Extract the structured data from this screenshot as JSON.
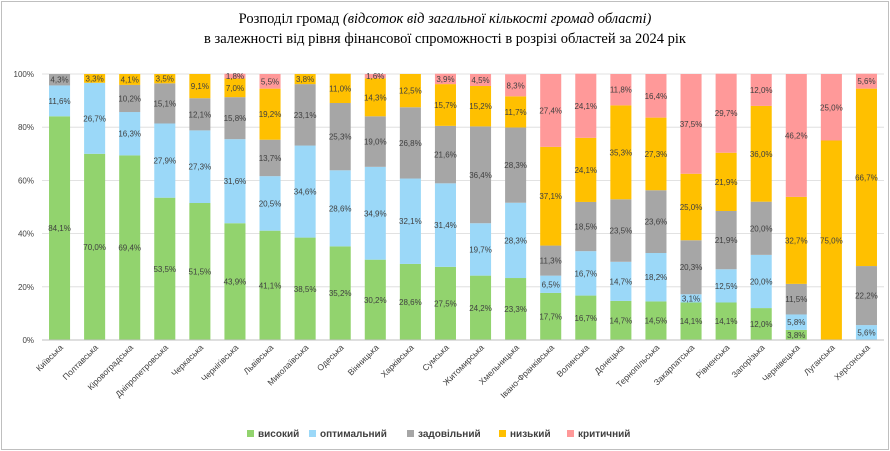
{
  "chart_data": {
    "type": "bar",
    "stacked": true,
    "title_main": "Розподіл громад",
    "title_italic": "(відсоток від загальної кількості громад області)",
    "title_line2": "в залежності від рівня фінансової спроможності  в розрізі областей за 2024 рік",
    "ylim": [
      0,
      100
    ],
    "yticks": [
      "0%",
      "20%",
      "40%",
      "60%",
      "80%",
      "100%"
    ],
    "grid": true,
    "legend_position": "bottom",
    "categories": [
      "Київська",
      "Полтавська",
      "Кіровоградська",
      "Дніпропетровська",
      "Черкаська",
      "Чернігівська",
      "Львівська",
      "Миколаївська",
      "Одеська",
      "Вінницька",
      "Харківська",
      "Сумська",
      "Житомирська",
      "Хмельницька",
      "Івано-Франківська",
      "Волинська",
      "Донецька",
      "Тернопільська",
      "Закарпатська",
      "Рівненська",
      "Запорізька",
      "Чернівецька",
      "Луганська",
      "Херсонська"
    ],
    "series": [
      {
        "name": "високий",
        "color": "#92d36e",
        "values": [
          84.1,
          70.0,
          69.4,
          53.5,
          51.5,
          43.9,
          41.1,
          38.5,
          35.2,
          30.2,
          28.6,
          27.5,
          24.2,
          23.3,
          17.7,
          16.7,
          14.7,
          14.5,
          14.1,
          14.1,
          12.0,
          3.8,
          0,
          0
        ],
        "labels": [
          "84,1%",
          "70,0%",
          "69,4%",
          "53,5%",
          "51,5%",
          "43,9%",
          "41,1%",
          "38,5%",
          "35,2%",
          "30,2%",
          "28,6%",
          "27,5%",
          "24,2%",
          "23,3%",
          "17,7%",
          "16,7%",
          "14,7%",
          "14,5%",
          "14,1%",
          "14,1%",
          "12,0%",
          "3,8%",
          "",
          ""
        ]
      },
      {
        "name": "оптимальний",
        "color": "#9bd8f8",
        "values": [
          11.6,
          26.7,
          16.3,
          27.9,
          27.3,
          31.6,
          20.5,
          34.6,
          28.6,
          34.9,
          32.1,
          31.4,
          19.7,
          28.3,
          6.5,
          16.7,
          14.7,
          18.2,
          3.1,
          12.5,
          20.0,
          5.8,
          0,
          5.6
        ],
        "labels": [
          "11,6%",
          "26,7%",
          "16,3%",
          "27,9%",
          "27,3%",
          "31,6%",
          "20,5%",
          "34,6%",
          "28,6%",
          "34,9%",
          "32,1%",
          "31,4%",
          "19,7%",
          "28,3%",
          "6,5%",
          "16,7%",
          "14,7%",
          "18,2%",
          "3,1%",
          "12,5%",
          "20,0%",
          "5,8%",
          "",
          "5,6%"
        ]
      },
      {
        "name": "задовільний",
        "color": "#a6a6a6",
        "values": [
          4.3,
          0,
          10.2,
          15.1,
          12.1,
          15.8,
          13.7,
          23.1,
          25.3,
          19.0,
          26.8,
          21.6,
          36.4,
          28.3,
          11.3,
          18.5,
          23.5,
          23.6,
          20.3,
          21.9,
          20.0,
          11.5,
          0,
          22.2
        ],
        "labels": [
          "4,3%",
          "",
          "10,2%",
          "15,1%",
          "12,1%",
          "15,8%",
          "13,7%",
          "23,1%",
          "25,3%",
          "19,0%",
          "26,8%",
          "21,6%",
          "36,4%",
          "28,3%",
          "11,3%",
          "18,5%",
          "23,5%",
          "23,6%",
          "20,3%",
          "21,9%",
          "20,0%",
          "11,5%",
          "",
          "22,2%"
        ]
      },
      {
        "name": "низький",
        "color": "#ffc000",
        "values": [
          0,
          3.3,
          4.1,
          3.5,
          9.1,
          7.0,
          19.2,
          3.8,
          11.0,
          14.3,
          12.5,
          15.7,
          15.2,
          11.7,
          37.1,
          24.1,
          35.3,
          27.3,
          25.0,
          21.9,
          36.0,
          32.7,
          75.0,
          66.7
        ],
        "labels": [
          "",
          "3,3%",
          "4,1%",
          "3,5%",
          "9,1%",
          "7,0%",
          "19,2%",
          "3,8%",
          "11,0%",
          "14,3%",
          "12,5%",
          "15,7%",
          "15,2%",
          "11,7%",
          "37,1%",
          "24,1%",
          "35,3%",
          "27,3%",
          "25,0%",
          "21,9%",
          "36,0%",
          "32,7%",
          "75,0%",
          "66,7%"
        ]
      },
      {
        "name": "критичний",
        "color": "#ff9999",
        "values": [
          0,
          0,
          0,
          0,
          0,
          1.8,
          5.5,
          0,
          0,
          1.6,
          0,
          3.9,
          4.5,
          8.3,
          27.4,
          24.1,
          11.8,
          16.4,
          37.5,
          29.7,
          12.0,
          46.2,
          25.0,
          5.6
        ],
        "labels": [
          "",
          "",
          "",
          "",
          "",
          "1,8%",
          "5,5%",
          "",
          "",
          "1,6%",
          "",
          "3,9%",
          "4,5%",
          "8,3%",
          "27,4%",
          "24,1%",
          "11,8%",
          "16,4%",
          "37,5%",
          "29,7%",
          "12,0%",
          "46,2%",
          "25,0%",
          "5,6%"
        ]
      }
    ]
  }
}
